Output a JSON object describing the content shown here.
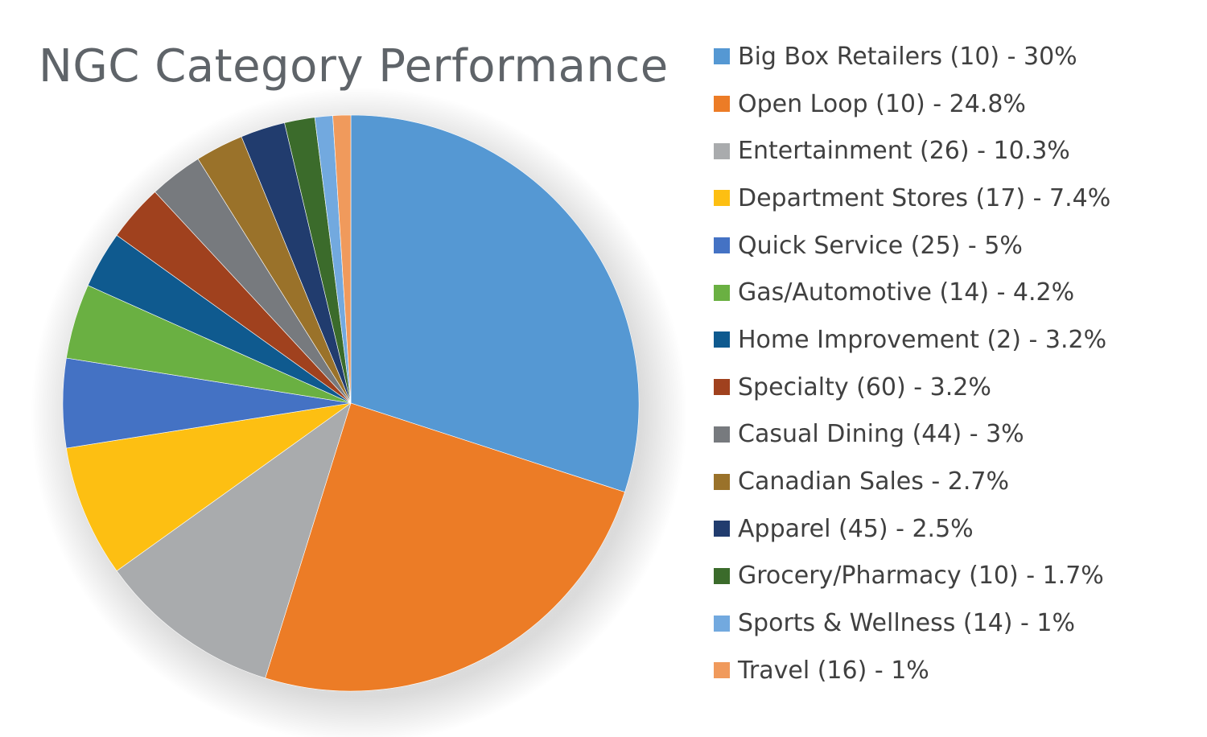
{
  "chart_data": {
    "type": "pie",
    "title": "NGC Category Performance",
    "legend_position": "right",
    "start_angle_deg": 0,
    "direction": "clockwise",
    "slices": [
      {
        "label": "Big Box Retailers (10) - 30%",
        "value": 30,
        "color": "#5598d3"
      },
      {
        "label": "Open Loop (10) - 24.8%",
        "value": 24.8,
        "color": "#ec7c26"
      },
      {
        "label": "Entertainment (26) - 10.3%",
        "value": 10.3,
        "color": "#a9abad"
      },
      {
        "label": "Department Stores (17) - 7.4%",
        "value": 7.4,
        "color": "#fdbf12"
      },
      {
        "label": "Quick Service (25) - 5%",
        "value": 5,
        "color": "#4472c4"
      },
      {
        "label": "Gas/Automotive (14) - 4.2%",
        "value": 4.2,
        "color": "#6ab042"
      },
      {
        "label": "Home Improvement (2) - 3.2%",
        "value": 3.2,
        "color": "#0f5a8f"
      },
      {
        "label": "Specialty (60) - 3.2%",
        "value": 3.2,
        "color": "#a0411e"
      },
      {
        "label": "Casual Dining (44) - 3%",
        "value": 3,
        "color": "#777a7e"
      },
      {
        "label": "Canadian Sales - 2.7%",
        "value": 2.7,
        "color": "#9a722a"
      },
      {
        "label": "Apparel (45) - 2.5%",
        "value": 2.5,
        "color": "#213c6e"
      },
      {
        "label": "Grocery/Pharmacy (10) - 1.7%",
        "value": 1.7,
        "color": "#3b6b2b"
      },
      {
        "label": "Sports & Wellness (14) - 1%",
        "value": 1,
        "color": "#72a9df"
      },
      {
        "label": "Travel (16) - 1%",
        "value": 1,
        "color": "#f09a5c"
      }
    ]
  }
}
